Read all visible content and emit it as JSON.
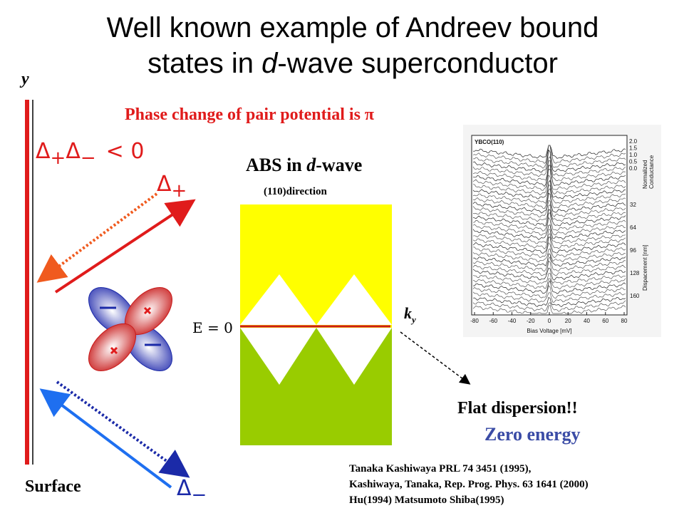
{
  "title": [
    "Well known example of Andreev bound",
    "states in ",
    "d",
    "-wave superconductor"
  ],
  "axis_label": "y",
  "phase_note": "Phase change of pair potential is  π",
  "condition": [
    "Δ",
    "+",
    "Δ",
    "−",
    "< 0"
  ],
  "delta_plus": [
    "Δ",
    "+"
  ],
  "delta_minus": [
    "Δ",
    "−"
  ],
  "abs_heading": [
    "ABS in ",
    "d",
    "-wave"
  ],
  "direction": "(110)direction",
  "energy_label": "E = 0",
  "momentum_label": [
    "k",
    "y"
  ],
  "flat_note": "Flat dispersion!!",
  "zero_note": "Zero energy",
  "surface_label": "Surface",
  "references": [
    "Tanaka Kashiwaya PRL 74 3451 (1995),",
    "Kashiwaya, Tanaka, Rep. Prog. Phys. 63 1641 (2000)",
    "Hu(1994) Matsumoto Shiba(1995)"
  ],
  "figure": {
    "title": "YBCO(110)",
    "conductance_ticks": [
      "2.0",
      "1.5",
      "1.0",
      "0.5",
      "0.0"
    ],
    "conductance_label": [
      "Normalized",
      "Conductance"
    ],
    "displacement_ticks": [
      "32",
      "64",
      "96",
      "128",
      "160"
    ],
    "displacement_label": "Dispacement [nm]",
    "bias_ticks": [
      "-80",
      "-60",
      "-40",
      "-20",
      "0",
      "20",
      "40",
      "60",
      "80"
    ],
    "bias_label": "Bias Voltage [mV]"
  }
}
